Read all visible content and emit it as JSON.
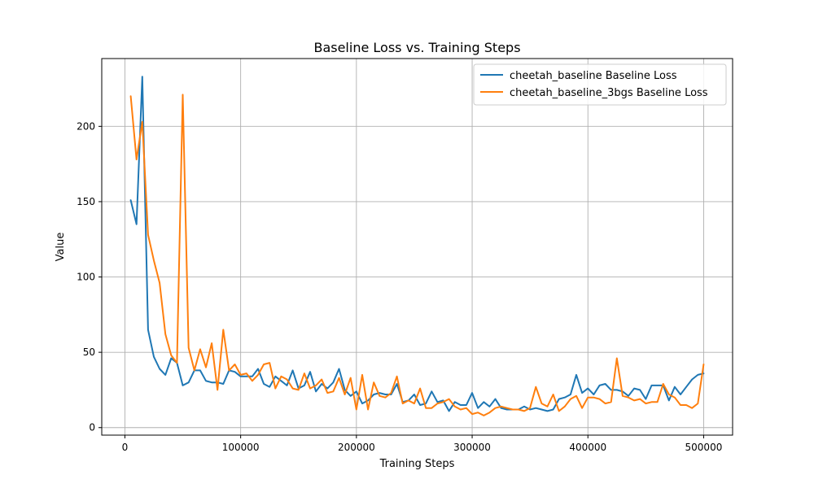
{
  "chart_data": {
    "type": "line",
    "title": "Baseline Loss vs. Training Steps",
    "xlabel": "Training Steps",
    "ylabel": "Value",
    "xlim": [
      -20000,
      525000
    ],
    "ylim": [
      -5,
      245
    ],
    "xticks": [
      0,
      100000,
      200000,
      300000,
      400000,
      500000
    ],
    "yticks": [
      0,
      50,
      100,
      150,
      200
    ],
    "grid": true,
    "legend_position": "upper right",
    "series": [
      {
        "name": "cheetah_baseline Baseline Loss",
        "color": "#1f77b4",
        "x": [
          5000,
          10000,
          15000,
          20000,
          25000,
          30000,
          35000,
          40000,
          45000,
          50000,
          55000,
          60000,
          65000,
          70000,
          75000,
          80000,
          85000,
          90000,
          95000,
          100000,
          105000,
          110000,
          115000,
          120000,
          125000,
          130000,
          135000,
          140000,
          145000,
          150000,
          155000,
          160000,
          165000,
          170000,
          175000,
          180000,
          185000,
          190000,
          195000,
          200000,
          205000,
          210000,
          215000,
          220000,
          225000,
          230000,
          235000,
          240000,
          245000,
          250000,
          255000,
          260000,
          265000,
          270000,
          275000,
          280000,
          285000,
          290000,
          295000,
          300000,
          305000,
          310000,
          315000,
          320000,
          325000,
          330000,
          335000,
          340000,
          345000,
          350000,
          355000,
          360000,
          365000,
          370000,
          375000,
          380000,
          385000,
          390000,
          395000,
          400000,
          405000,
          410000,
          415000,
          420000,
          425000,
          430000,
          435000,
          440000,
          445000,
          450000,
          455000,
          460000,
          465000,
          470000,
          475000,
          480000,
          485000,
          490000,
          495000,
          500000
        ],
        "y": [
          151,
          135,
          233,
          65,
          47,
          39,
          35,
          46,
          43,
          28,
          30,
          38,
          38,
          31,
          30,
          30,
          29,
          38,
          37,
          34,
          34,
          34,
          39,
          29,
          27,
          34,
          31,
          28,
          38,
          26,
          28,
          37,
          24,
          29,
          26,
          30,
          39,
          25,
          21,
          24,
          16,
          18,
          22,
          23,
          22,
          22,
          29,
          17,
          18,
          22,
          15,
          16,
          24,
          17,
          18,
          11,
          17,
          15,
          15,
          23,
          13,
          17,
          14,
          19,
          13,
          12,
          12,
          12,
          14,
          12,
          13,
          12,
          11,
          12,
          19,
          20,
          22,
          35,
          23,
          26,
          22,
          28,
          29,
          25,
          25,
          24,
          21,
          26,
          25,
          19,
          28,
          28,
          28,
          18,
          27,
          22,
          27,
          32,
          35,
          36
        ]
      },
      {
        "name": "cheetah_baseline_3bgs Baseline Loss",
        "color": "#ff7f0e",
        "x": [
          5000,
          10000,
          15000,
          20000,
          25000,
          30000,
          35000,
          40000,
          45000,
          50000,
          55000,
          60000,
          65000,
          70000,
          75000,
          80000,
          85000,
          90000,
          95000,
          100000,
          105000,
          110000,
          115000,
          120000,
          125000,
          130000,
          135000,
          140000,
          145000,
          150000,
          155000,
          160000,
          165000,
          170000,
          175000,
          180000,
          185000,
          190000,
          195000,
          200000,
          205000,
          210000,
          215000,
          220000,
          225000,
          230000,
          235000,
          240000,
          245000,
          250000,
          255000,
          260000,
          265000,
          270000,
          275000,
          280000,
          285000,
          290000,
          295000,
          300000,
          305000,
          310000,
          315000,
          320000,
          325000,
          330000,
          335000,
          340000,
          345000,
          350000,
          355000,
          360000,
          365000,
          370000,
          375000,
          380000,
          385000,
          390000,
          395000,
          400000,
          405000,
          410000,
          415000,
          420000,
          425000,
          430000,
          435000,
          440000,
          445000,
          450000,
          455000,
          460000,
          465000,
          470000,
          475000,
          480000,
          485000,
          490000,
          495000,
          500000
        ],
        "y": [
          220,
          178,
          203,
          128,
          111,
          96,
          62,
          48,
          43,
          221,
          53,
          38,
          52,
          40,
          56,
          25,
          65,
          38,
          42,
          35,
          36,
          31,
          35,
          42,
          43,
          26,
          34,
          32,
          26,
          25,
          36,
          26,
          28,
          32,
          23,
          24,
          33,
          22,
          33,
          12,
          35,
          12,
          30,
          21,
          20,
          23,
          34,
          16,
          18,
          16,
          26,
          13,
          13,
          16,
          17,
          19,
          14,
          12,
          13,
          9,
          10,
          8,
          10,
          13,
          14,
          13,
          12,
          12,
          11,
          13,
          27,
          16,
          14,
          22,
          11,
          14,
          19,
          21,
          13,
          20,
          20,
          19,
          16,
          17,
          46,
          21,
          20,
          18,
          19,
          16,
          17,
          17,
          29,
          22,
          20,
          15,
          15,
          13,
          16,
          42
        ]
      }
    ]
  }
}
